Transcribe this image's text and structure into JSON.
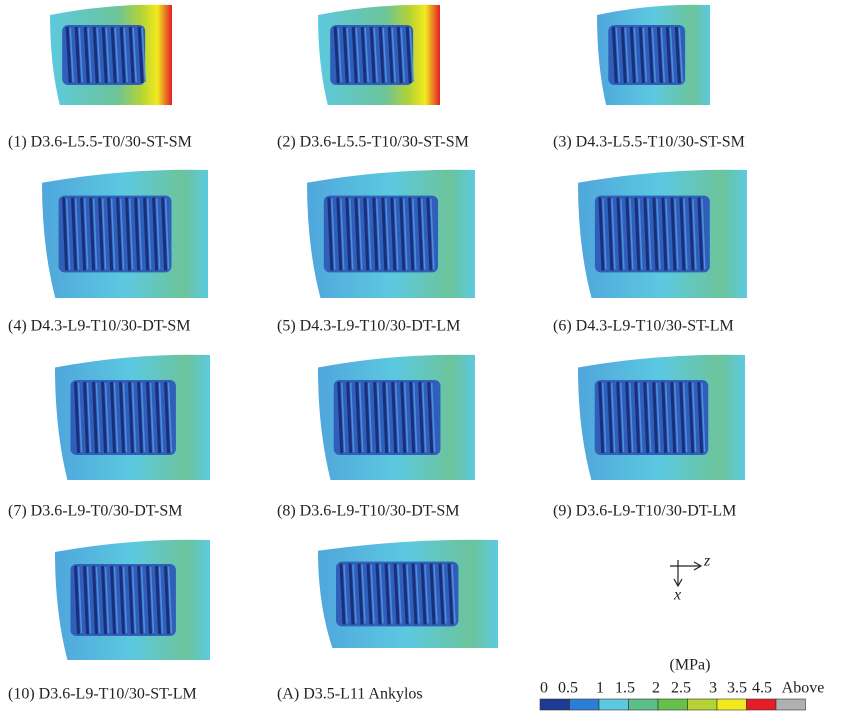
{
  "panels": [
    {
      "caption": "(1) D3.6-L5.5-T0/30-ST-SM"
    },
    {
      "caption": "(2) D3.6-L5.5-T10/30-ST-SM"
    },
    {
      "caption": "(3) D4.3-L5.5-T10/30-ST-SM"
    },
    {
      "caption": "(4) D4.3-L9-T10/30-DT-SM"
    },
    {
      "caption": "(5) D4.3-L9-T10/30-DT-LM"
    },
    {
      "caption": "(6) D4.3-L9-T10/30-ST-LM"
    },
    {
      "caption": "(7) D3.6-L9-T0/30-DT-SM"
    },
    {
      "caption": "(8) D3.6-L9-T10/30-DT-SM"
    },
    {
      "caption": "(9) D3.6-L9-T10/30-DT-LM"
    },
    {
      "caption": "(10) D3.6-L9-T10/30-ST-LM"
    },
    {
      "caption": "(A) D3.5-L11 Ankylos"
    }
  ],
  "axes": {
    "horizontal": "z",
    "vertical": "x"
  },
  "legend": {
    "unit": "(MPa)",
    "labels": [
      "0",
      "0.5",
      "1",
      "1.5",
      "2",
      "2.5",
      "3",
      "3.5",
      "4.5",
      "Above"
    ],
    "colors": [
      "#1f3a93",
      "#2a7fd4",
      "#5cc9e0",
      "#5cbf8a",
      "#66c04a",
      "#b5d334",
      "#f2ea1f",
      "#e41e26",
      "#b0b0b0"
    ]
  }
}
